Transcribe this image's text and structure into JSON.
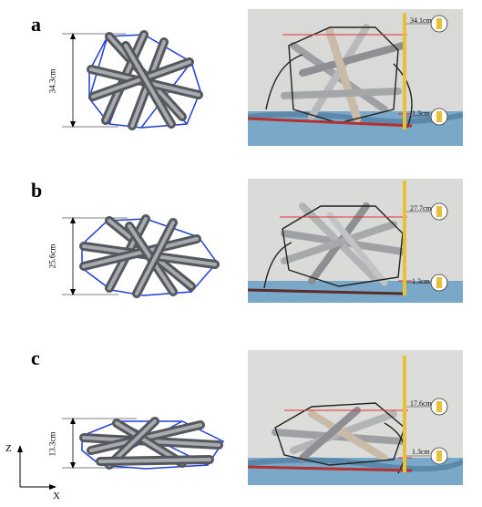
{
  "panels": [
    {
      "letter": "a",
      "model_height": "34.3cm",
      "ruler_top": "34.1cm",
      "ruler_bottom": "1.3cm"
    },
    {
      "letter": "b",
      "model_height": "25.6cm",
      "ruler_top": "27.7cm",
      "ruler_bottom": "1.3cm"
    },
    {
      "letter": "c",
      "model_height": "13.3cm",
      "ruler_top": "17.6cm",
      "ruler_bottom": "1.3cm"
    }
  ],
  "axes": {
    "vertical": "Z",
    "horizontal": "X"
  },
  "colors": {
    "rod": "#8a8d92",
    "cable": "#1f3fd6",
    "ruler": "#e7c13a",
    "laser": "#e03030",
    "table": "#7aa8c8"
  }
}
